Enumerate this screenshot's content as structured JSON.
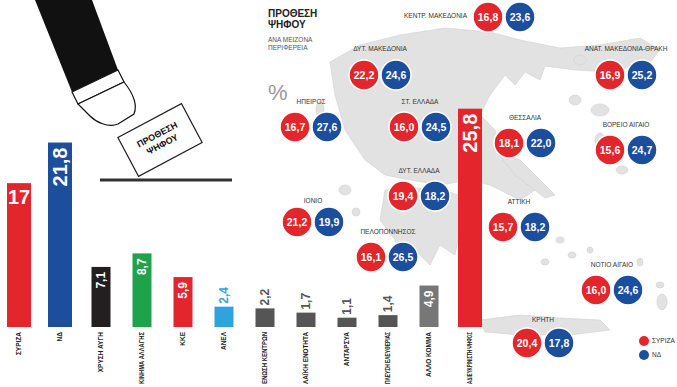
{
  "chart_data": [
    {
      "type": "bar",
      "categories": [
        "ΣΥΡΙΖΑ",
        "ΝΔ",
        "ΧΡΥΣΗ ΑΥΓΗ",
        "ΚΙΝΗΜΑ ΑΛΛΑΓΗΣ",
        "ΚΚΕ",
        "ΑΝΕΛ",
        "ΕΝΩΣΗ ΚΕΝΤΡΩΝ",
        "ΛΑΪΚΗ ΕΝΟΤΗΤΑ",
        "ΑΝΤΑΡΣΥΑ",
        "ΠΛΕΥΣΗ ΕΛΕΥΘΕΡΙΑΣ",
        "ΑΛΛΟ ΚΟΜΜΑ",
        "ΑΔΙΕΥΚΡΙΝΙΣΤΗ ΨΗΦΟΣ"
      ],
      "values": [
        17,
        21.8,
        7.1,
        8.7,
        5.9,
        2.4,
        2.2,
        1.7,
        1.1,
        1.4,
        4.9,
        25.8
      ],
      "value_labels": [
        "17",
        "21,8",
        "7,1",
        "8,7",
        "5,9",
        "2,4",
        "2,2",
        "1,7",
        "1,1",
        "1,4",
        "4,9",
        "25,8"
      ],
      "colors": [
        "#e3262b",
        "#1c4e9e",
        "#231f20",
        "#1fa34a",
        "#e3262b",
        "#2ea3dc",
        "#555555",
        "#555555",
        "#555555",
        "#555555",
        "#777777",
        "#e3262b"
      ],
      "ylim": [
        0,
        26
      ],
      "data_labels": true,
      "tick_labels": "x"
    },
    {
      "type": "map",
      "title": "ΠΡΟΘΕΣΗ ΨΗΦΟΥ",
      "subtitle": "ΑΝΑ ΜΕΙΖΟΝΑ ΠΕΡΙΦΕΡΕΙΑ",
      "annotations": [
        "%"
      ],
      "categories": [
        "ΚΕΝΤΡ. ΜΑΚΕΔΟΝΙΑ",
        "ΔΥΤ. ΜΑΚΕΔΟΝΙΑ",
        "ΑΝΑΤ. ΜΑΚΕΔΟΝΙΑ-ΘΡΑΚΗ",
        "ΗΠΕΙΡΟΣ",
        "ΣΤ. ΕΛΛΑΔΑ",
        "ΘΕΣΣΑΛΙΑ",
        "ΒΟΡΕΙΟ ΑΙΓΑΙΟ",
        "ΔΥΤ. ΕΛΛΑΔΑ",
        "ΙΟΝΙΟ",
        "ΑΤΤΙΚΗ",
        "ΠΕΛΟΠΟΝΝΗΣΟΣ",
        "ΝΟΤΙΟ ΑΙΓΑΙΟ",
        "ΚΡΗΤΗ"
      ],
      "series": [
        {
          "name": "ΣΥΡΙΖΑ",
          "color": "#e3262b",
          "values": [
            16.8,
            22.2,
            16.9,
            16.7,
            16.0,
            18.1,
            15.6,
            19.4,
            21.2,
            15.7,
            16.1,
            16.0,
            20.4
          ],
          "value_labels": [
            "16,8",
            "22,2",
            "16,9",
            "16,7",
            "16,0",
            "18,1",
            "15,6",
            "19,4",
            "21,2",
            "15,7",
            "16,1",
            "16,0",
            "20,4"
          ]
        },
        {
          "name": "ΝΔ",
          "color": "#1c4e9e",
          "values": [
            23.6,
            24.6,
            25.2,
            27.6,
            24.5,
            22.0,
            24.7,
            18.2,
            19.9,
            18.2,
            26.5,
            24.6,
            17.8
          ],
          "value_labels": [
            "23,6",
            "24,6",
            "25,2",
            "27,6",
            "24,5",
            "22,0",
            "24,7",
            "18,2",
            "19,9",
            "18,2",
            "26,5",
            "24,6",
            "17,8"
          ]
        }
      ],
      "data_labels": true,
      "legend": "bottom-right"
    }
  ]
}
